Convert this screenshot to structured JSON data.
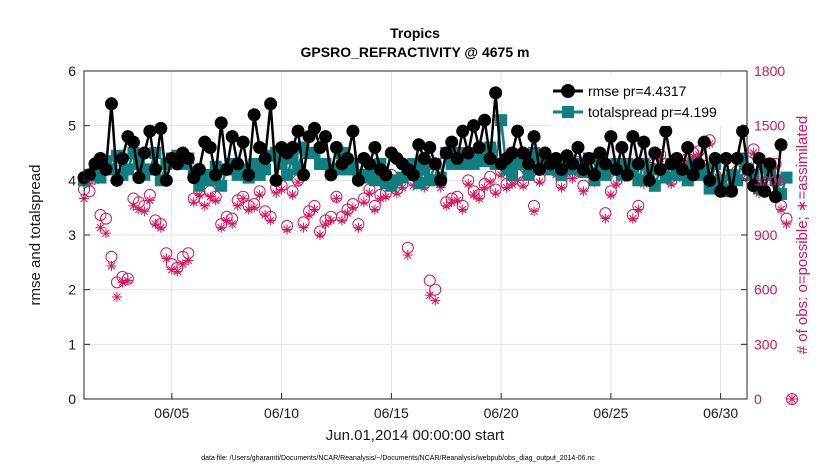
{
  "chart_data": {
    "type": "line",
    "title": "Tropics",
    "subtitle": "GPSRO_REFRACTIVITY @ 4675 m",
    "xlabel": "Jun.01,2014 00:00:00 start",
    "ylabel": "rmse and totalspread",
    "ylabel_right": "# of obs: o=possible; ∗=assimilated",
    "footnote": "data file: /Users/gharamti/Documents/NCAR/Reanalysis/~/Documents/NCAR/Reanalysis/webpub/obs_diag_output_2014-06.nc",
    "xlim": [
      1,
      31.2
    ],
    "ylim": [
      0,
      6
    ],
    "ylim_right": [
      0,
      1800
    ],
    "x_ticks": [
      5,
      10,
      15,
      20,
      25,
      30
    ],
    "x_tick_labels": [
      "06/05",
      "06/10",
      "06/15",
      "06/20",
      "06/25",
      "06/30"
    ],
    "y_ticks": [
      0,
      1,
      2,
      3,
      4,
      5,
      6
    ],
    "y_tick_labels": [
      "0",
      "1",
      "2",
      "3",
      "4",
      "5",
      "6"
    ],
    "y_ticks_right": [
      0,
      300,
      600,
      900,
      1200,
      1500,
      1800
    ],
    "y_tick_labels_right": [
      "0",
      "300",
      "600",
      "900",
      "1200",
      "1500",
      "1800"
    ],
    "grid": true,
    "legend_position": "top-right",
    "colors": {
      "rmse": "#000000",
      "spread": "#0f7f7f",
      "obs": "#d6135d"
    },
    "series": [
      {
        "name": "rmse pr=4.4317",
        "axis": "left",
        "marker": "circle",
        "values": [
          4.05,
          4.1,
          4.3,
          4.4,
          4.2,
          5.4,
          4.0,
          4.4,
          4.8,
          4.7,
          4.05,
          4.5,
          4.9,
          4.2,
          4.95,
          4.0,
          4.4,
          4.3,
          4.5,
          4.4,
          4.05,
          4.2,
          4.7,
          4.6,
          4.1,
          5.05,
          4.2,
          4.8,
          4.3,
          4.7,
          4.1,
          5.2,
          4.6,
          4.4,
          5.4,
          4.0,
          4.6,
          4.5,
          4.6,
          4.9,
          4.1,
          4.8,
          4.95,
          4.6,
          4.8,
          4.1,
          4.6,
          4.3,
          4.4,
          4.9,
          4.0,
          4.4,
          4.3,
          4.6,
          4.2,
          4.1,
          4.5,
          4.4,
          4.3,
          4.2,
          4.1,
          4.65,
          4.4,
          4.6,
          4.3,
          4.0,
          4.5,
          4.7,
          4.4,
          4.9,
          4.5,
          5.0,
          4.6,
          5.1,
          4.4,
          5.6,
          4.3,
          4.4,
          4.5,
          4.9,
          4.5,
          4.3,
          4.8,
          4.2,
          4.5,
          4.3,
          4.4,
          4.2,
          4.45,
          4.3,
          4.6,
          4.2,
          4.4,
          4.1,
          4.5,
          4.3,
          4.8,
          4.2,
          4.6,
          4.1,
          4.8,
          4.3,
          4.7,
          4.0,
          4.5,
          4.2,
          4.9,
          4.3,
          4.4,
          4.2,
          4.6,
          4.1,
          4.3,
          4.7,
          4.0,
          4.4,
          3.8,
          4.4,
          3.8,
          4.4,
          4.9,
          4.2,
          3.9,
          4.4,
          3.8,
          4.3,
          3.7,
          4.65
        ]
      },
      {
        "name": "totalspread pr=4.199",
        "axis": "left",
        "marker": "square",
        "values": [
          4.0,
          4.1,
          4.2,
          4.05,
          4.35,
          4.2,
          4.45,
          4.1,
          4.2,
          4.5,
          4.3,
          4.1,
          4.2,
          4.5,
          4.0,
          4.3,
          4.4,
          4.45,
          4.3,
          4.4,
          4.15,
          3.9,
          4.1,
          4.0,
          4.25,
          3.9,
          4.2,
          4.3,
          4.1,
          4.2,
          4.05,
          4.3,
          4.1,
          4.2,
          4.45,
          4.5,
          4.3,
          4.1,
          4.4,
          4.2,
          4.6,
          4.5,
          4.5,
          4.3,
          4.3,
          4.2,
          4.2,
          4.5,
          4.2,
          4.3,
          4.1,
          4.05,
          4.1,
          4.0,
          4.3,
          3.95,
          3.9,
          4.0,
          4.05,
          4.1,
          4.3,
          3.95,
          4.2,
          4.0,
          4.3,
          4.05,
          4.5,
          4.3,
          4.5,
          4.3,
          4.5,
          4.3,
          4.4,
          4.35,
          4.6,
          4.3,
          5.1,
          4.2,
          4.1,
          4.3,
          4.4,
          4.1,
          4.5,
          4.3,
          4.4,
          4.2,
          4.3,
          4.1,
          4.25,
          4.2,
          4.3,
          4.15,
          4.4,
          4.0,
          4.3,
          4.1,
          4.2,
          4.3,
          4.1,
          4.3,
          4.2,
          4.0,
          4.3,
          4.2,
          3.9,
          4.2,
          4.05,
          4.3,
          4.1,
          4.2,
          4.0,
          4.3,
          4.1,
          4.2,
          3.85,
          4.3,
          4.0,
          3.8,
          4.1,
          4.0,
          4.4,
          4.2,
          4.1,
          3.85,
          4.3,
          4.1,
          4.0,
          3.75,
          4.05
        ]
      },
      {
        "name": "possible",
        "axis": "right",
        "marker": "open-circle",
        "values": [
          1150,
          1140,
          1240,
          1010,
          990,
          780,
          640,
          670,
          660,
          1100,
          1080,
          1060,
          1120,
          980,
          960,
          800,
          740,
          720,
          780,
          800,
          1100,
          1140,
          1090,
          1140,
          1110,
          960,
          1000,
          990,
          1090,
          1110,
          1060,
          1070,
          1140,
          1030,
          1000,
          1160,
          1170,
          950,
          1140,
          1200,
          970,
          1030,
          1060,
          920,
          980,
          1000,
          1110,
          1000,
          1040,
          1070,
          960,
          1100,
          1150,
          1060,
          1120,
          1130,
          1230,
          1150,
          1180,
          830,
          1200,
          1250,
          1180,
          650,
          600,
          1190,
          1080,
          1100,
          1110,
          1060,
          1200,
          1140,
          1120,
          1180,
          1220,
          1150,
          1250,
          1180,
          1200,
          1230,
          1190,
          1240,
          1060,
          1210,
          1270,
          1280,
          1250,
          1180,
          1330,
          1240,
          1300,
          1170,
          1280,
          1210,
          1330,
          1020,
          1140,
          1200,
          1230,
          1240,
          1010,
          1060,
          1200,
          1270,
          1290,
          1340,
          1290,
          1200,
          1230,
          1290,
          1320,
          1350,
          1360,
          1280,
          1420,
          1230,
          1170,
          1190,
          1180,
          1250,
          1230,
          1300,
          1370,
          1150,
          1280,
          1230,
          1290,
          1060,
          990,
          0
        ]
      },
      {
        "name": "assimilated",
        "axis": "right",
        "marker": "asterisk",
        "values": [
          1100,
          1180,
          1200,
          940,
          910,
          730,
          560,
          640,
          650,
          1060,
          1040,
          1030,
          1090,
          960,
          940,
          770,
          710,
          700,
          740,
          760,
          1080,
          1120,
          1060,
          1110,
          1090,
          940,
          980,
          960,
          1060,
          1100,
          1040,
          1050,
          1120,
          1010,
          980,
          1130,
          1150,
          930,
          1120,
          1190,
          940,
          1010,
          1040,
          900,
          960,
          980,
          1100,
          980,
          1020,
          1050,
          940,
          1080,
          1130,
          1040,
          1100,
          1110,
          1210,
          1130,
          1160,
          790,
          1170,
          1230,
          1160,
          570,
          540,
          1160,
          1060,
          1080,
          1090,
          1040,
          1180,
          1120,
          1100,
          1160,
          1190,
          1130,
          1230,
          1160,
          1180,
          1200,
          1170,
          1220,
          1030,
          1190,
          1250,
          1260,
          1230,
          1160,
          1310,
          1210,
          1280,
          1140,
          1260,
          1190,
          1310,
          990,
          1120,
          1180,
          1210,
          1220,
          990,
          1040,
          1180,
          1250,
          1270,
          1320,
          1270,
          1180,
          1210,
          1270,
          1300,
          1330,
          1340,
          1260,
          1400,
          1210,
          1150,
          1170,
          1160,
          1230,
          1210,
          1280,
          1350,
          1130,
          1260,
          1210,
          1270,
          1040,
          960,
          0
        ]
      }
    ]
  }
}
